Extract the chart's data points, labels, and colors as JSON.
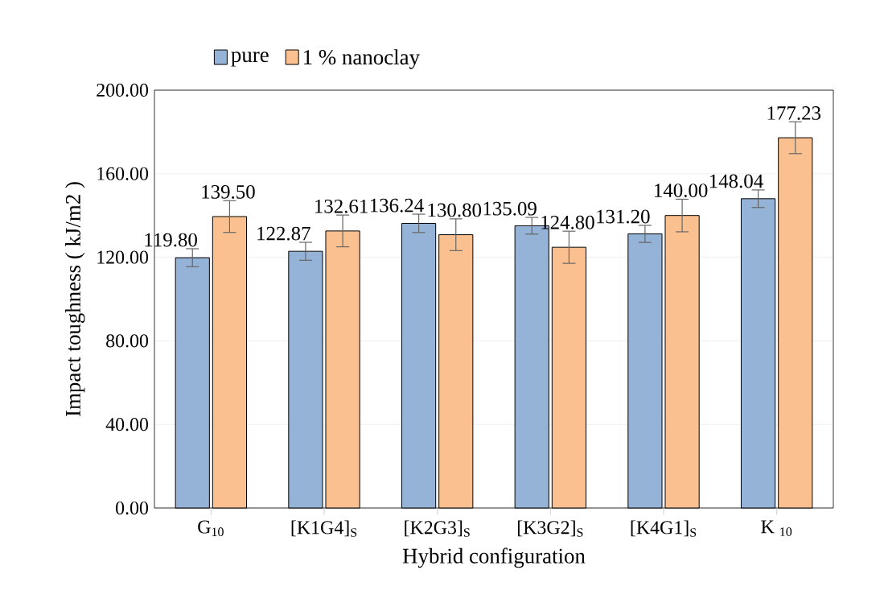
{
  "chart_data": {
    "type": "bar",
    "xlabel": "Hybrid configuration",
    "ylabel": "Impact toughness ( kJ/m2 )",
    "categories": [
      "G$_{10}$",
      "[K1G4]$_{S}$",
      "[K2G3]$_{S}$",
      "[K3G2]$_{S}$",
      "[K4G1]$_{S}$",
      "K $_{10}$"
    ],
    "series": [
      {
        "name": "pure",
        "color": "#95b3d7",
        "values": [
          119.8,
          122.87,
          136.24,
          135.09,
          131.2,
          148.04
        ],
        "errors": [
          4.3,
          4.3,
          4.4,
          4.0,
          4.1,
          4.2
        ],
        "value_labels": [
          "119.80",
          "122.87",
          "136.24",
          "135.09",
          "131.20",
          "148.04"
        ]
      },
      {
        "name": "1 % nanoclay",
        "color": "#fac090",
        "values": [
          139.5,
          132.61,
          130.8,
          124.8,
          140.0,
          177.23
        ],
        "errors": [
          7.6,
          7.6,
          7.6,
          7.7,
          7.8,
          7.6
        ],
        "value_labels": [
          "139.50",
          "132.61",
          "130.80",
          "124.80",
          "140.00",
          "177.23"
        ]
      }
    ],
    "ylim": [
      0,
      200
    ],
    "yticks": [
      {
        "value": 0,
        "label": "0.00"
      },
      {
        "value": 40,
        "label": "40.00"
      },
      {
        "value": 80,
        "label": "80.00"
      },
      {
        "value": 120,
        "label": "120.00"
      },
      {
        "value": 160,
        "label": "160.00"
      },
      {
        "value": 200,
        "label": "200.00"
      }
    ],
    "grid": "y",
    "legend": "top left"
  }
}
